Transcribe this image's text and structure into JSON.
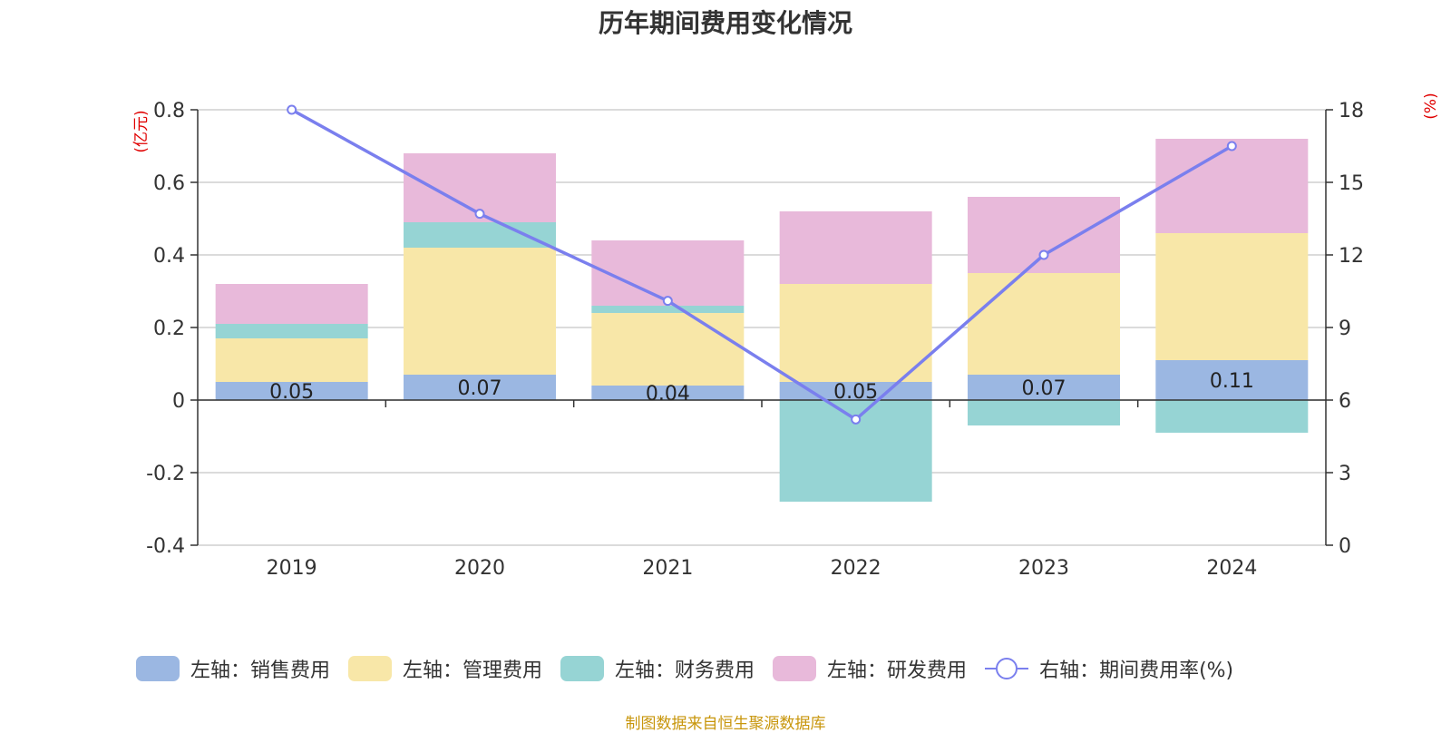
{
  "chart_data": {
    "type": "bar",
    "title": "历年期间费用变化情况",
    "categories": [
      "2019",
      "2020",
      "2021",
      "2022",
      "2023",
      "2024"
    ],
    "left_axis": {
      "unit": "(亿元)",
      "min": -0.4,
      "max": 0.8,
      "ticks": [
        "-0.4",
        "-0.2",
        "0",
        "0.2",
        "0.4",
        "0.6",
        "0.8"
      ]
    },
    "right_axis": {
      "unit": "(%)",
      "min": 0,
      "max": 18,
      "ticks": [
        "0",
        "3",
        "6",
        "9",
        "12",
        "15",
        "18"
      ]
    },
    "series": [
      {
        "name": "左轴：销售费用",
        "type": "bar",
        "color": "#9bb7e2",
        "values": [
          0.05,
          0.07,
          0.04,
          0.05,
          0.07,
          0.11
        ],
        "labels": [
          "0.05",
          "0.07",
          "0.04",
          "0.05",
          "0.07",
          "0.11"
        ]
      },
      {
        "name": "左轴：管理费用",
        "type": "bar",
        "color": "#f8e7a8",
        "values": [
          0.12,
          0.35,
          0.2,
          0.27,
          0.28,
          0.35
        ]
      },
      {
        "name": "左轴：财务费用",
        "type": "bar",
        "color": "#96d4d4",
        "values": [
          0.04,
          0.07,
          0.02,
          -0.28,
          -0.07,
          -0.09
        ]
      },
      {
        "name": "左轴：研发费用",
        "type": "bar",
        "color": "#e8b9da",
        "values": [
          0.11,
          0.19,
          0.18,
          0.2,
          0.21,
          0.26
        ]
      },
      {
        "name": "右轴：期间费用率(%)",
        "type": "line",
        "color": "#7a7fee",
        "values": [
          18,
          13.7,
          10.1,
          5.2,
          12,
          16.5
        ]
      }
    ],
    "grid": true,
    "legend_position": "bottom"
  },
  "source_note": "制图数据来自恒生聚源数据库"
}
